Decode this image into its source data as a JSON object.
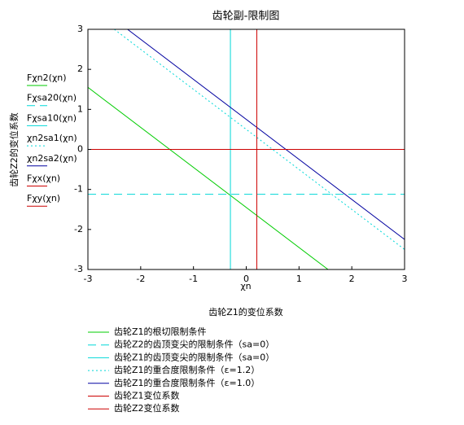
{
  "chart_data": {
    "type": "line",
    "title": "齿轮副-限制图",
    "x_expression": "χn",
    "xlabel": "齿轮Z1的变位系数",
    "ylabel": "齿轮Z2的变位系数",
    "xlim": [
      -3,
      3
    ],
    "ylim": [
      -3,
      3
    ],
    "xticks": [
      -3,
      -2,
      -1,
      0,
      1,
      2,
      3
    ],
    "yticks": [
      -3,
      -2,
      -1,
      0,
      1,
      2,
      3
    ],
    "series": [
      {
        "name": "齿轮Z1的根切限制条件",
        "y_expression": "Fχn2(χn)",
        "color": "#00cc00",
        "style": "solid",
        "x": [
          -3,
          1.55
        ],
        "values": [
          1.55,
          -3
        ]
      },
      {
        "name": "齿轮Z2的齿顶变尖的限制条件（sa=0）",
        "y_expression": "Fχsa20(χn)",
        "color": "#00d8d8",
        "style": "dashed",
        "x": [
          -3,
          3
        ],
        "values": [
          -1.12,
          -1.12
        ]
      },
      {
        "name": "齿轮Z1的齿顶变尖的限制条件（sa=0）",
        "y_expression": "Fχsa10(χn)",
        "color": "#00d8d8",
        "style": "solid",
        "x": [
          -0.3,
          -0.3
        ],
        "values": [
          -3,
          3
        ]
      },
      {
        "name": "齿轮Z1的重合度限制条件（ε=1.2）",
        "y_expression": "χn2sa1(χn)",
        "color": "#00d8d8",
        "style": "dotted",
        "x": [
          -2.5,
          3
        ],
        "values": [
          3,
          -2.5
        ]
      },
      {
        "name": "齿轮Z1的重合度限制条件（ε=1.0）",
        "y_expression": "χn2sa2(χn)",
        "color": "#0000a0",
        "style": "solid",
        "x": [
          -2.25,
          3
        ],
        "values": [
          3,
          -2.25
        ]
      },
      {
        "name": "齿轮Z1变位系数",
        "y_expression": "Fχx(χn)",
        "color": "#cc0000",
        "style": "solid",
        "x": [
          0.2,
          0.2
        ],
        "values": [
          -3,
          3
        ]
      },
      {
        "name": "齿轮Z2变位系数",
        "y_expression": "Fχy(χn)",
        "color": "#cc0000",
        "style": "solid",
        "x": [
          -3,
          3
        ],
        "values": [
          0,
          0
        ]
      }
    ]
  }
}
